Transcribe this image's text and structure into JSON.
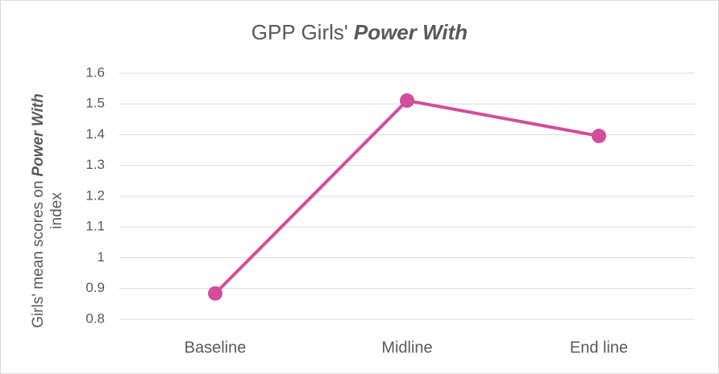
{
  "chart_data": {
    "type": "line",
    "title": {
      "text": "GPP Girls'",
      "emphasis": "Power With"
    },
    "ylabel": {
      "line1": "Girls' mean scores on",
      "emphasis": "Power With",
      "line2": "index"
    },
    "categories": [
      "Baseline",
      "Midline",
      "End line"
    ],
    "series": [
      {
        "name": "Girls' mean scores on Power With index",
        "color": "#d24d9b",
        "values": [
          0.884,
          1.511,
          1.396
        ]
      }
    ],
    "ylim": [
      0.8,
      1.6
    ],
    "yticks": [
      0.8,
      0.9,
      1,
      1.1,
      1.2,
      1.3,
      1.4,
      1.5,
      1.6
    ],
    "grid": true
  }
}
